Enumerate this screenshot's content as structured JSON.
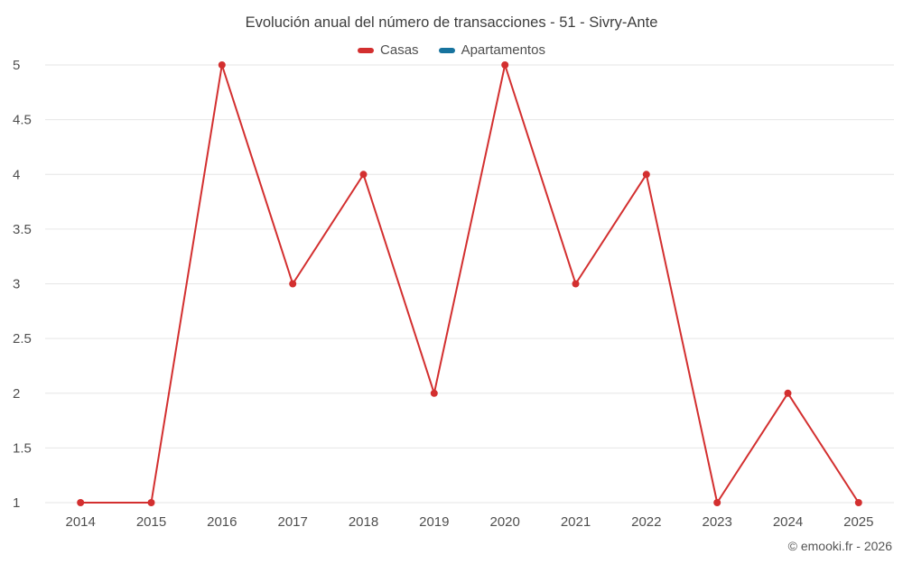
{
  "chart": {
    "title": "Evolución anual del número de transacciones - 51 - Sivry-Ante",
    "footer": "© emooki.fr - 2026",
    "legend": [
      {
        "label": "Casas",
        "color": "#d32f2f"
      },
      {
        "label": "Apartamentos",
        "color": "#17739e"
      }
    ]
  },
  "chart_data": {
    "type": "line",
    "title": "Evolución anual del número de transacciones - 51 - Sivry-Ante",
    "categories": [
      "2014",
      "2015",
      "2016",
      "2017",
      "2018",
      "2019",
      "2020",
      "2021",
      "2022",
      "2023",
      "2024",
      "2025"
    ],
    "series": [
      {
        "name": "Casas",
        "color": "#d32f2f",
        "values": [
          1,
          1,
          5,
          3,
          4,
          2,
          5,
          3,
          4,
          1,
          2,
          1
        ]
      }
    ],
    "xlabel": "",
    "ylabel": "",
    "ylim": [
      1,
      5
    ],
    "yticks": [
      1,
      1.5,
      2,
      2.5,
      3,
      3.5,
      4,
      4.5,
      5
    ],
    "grid": true,
    "legend_position": "top",
    "marker": "circle"
  }
}
